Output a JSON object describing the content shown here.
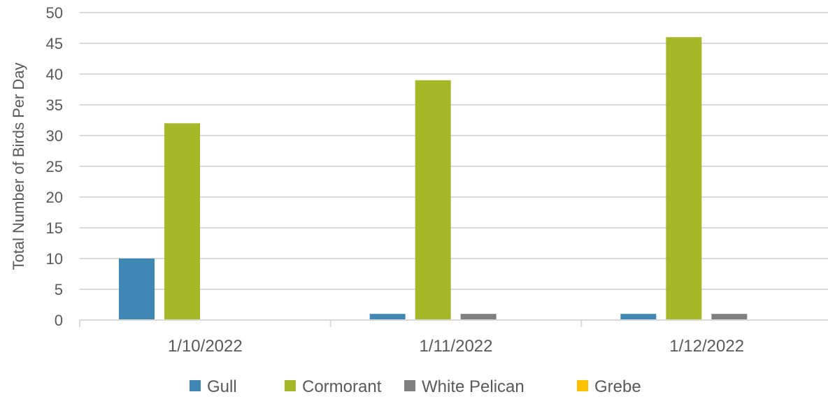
{
  "chart_data": {
    "type": "bar",
    "categories": [
      "1/10/2022",
      "1/11/2022",
      "1/12/2022"
    ],
    "series": [
      {
        "name": "Gull",
        "values": [
          10,
          1,
          1
        ],
        "color": "#3f88b5"
      },
      {
        "name": "Cormorant",
        "values": [
          32,
          39,
          46
        ],
        "color": "#a6b727"
      },
      {
        "name": "White Pelican",
        "values": [
          0,
          1,
          1
        ],
        "color": "#808080"
      },
      {
        "name": "Grebe",
        "values": [
          0,
          0,
          0
        ],
        "color": "#ffc000"
      }
    ],
    "title": "",
    "xlabel": "",
    "ylabel": "Total Number of Birds Per Day",
    "ylim": [
      0,
      50
    ],
    "y_ticks": [
      0,
      5,
      10,
      15,
      20,
      25,
      30,
      35,
      40,
      45,
      50
    ],
    "grid": "horizontal",
    "legend_position": "bottom"
  }
}
